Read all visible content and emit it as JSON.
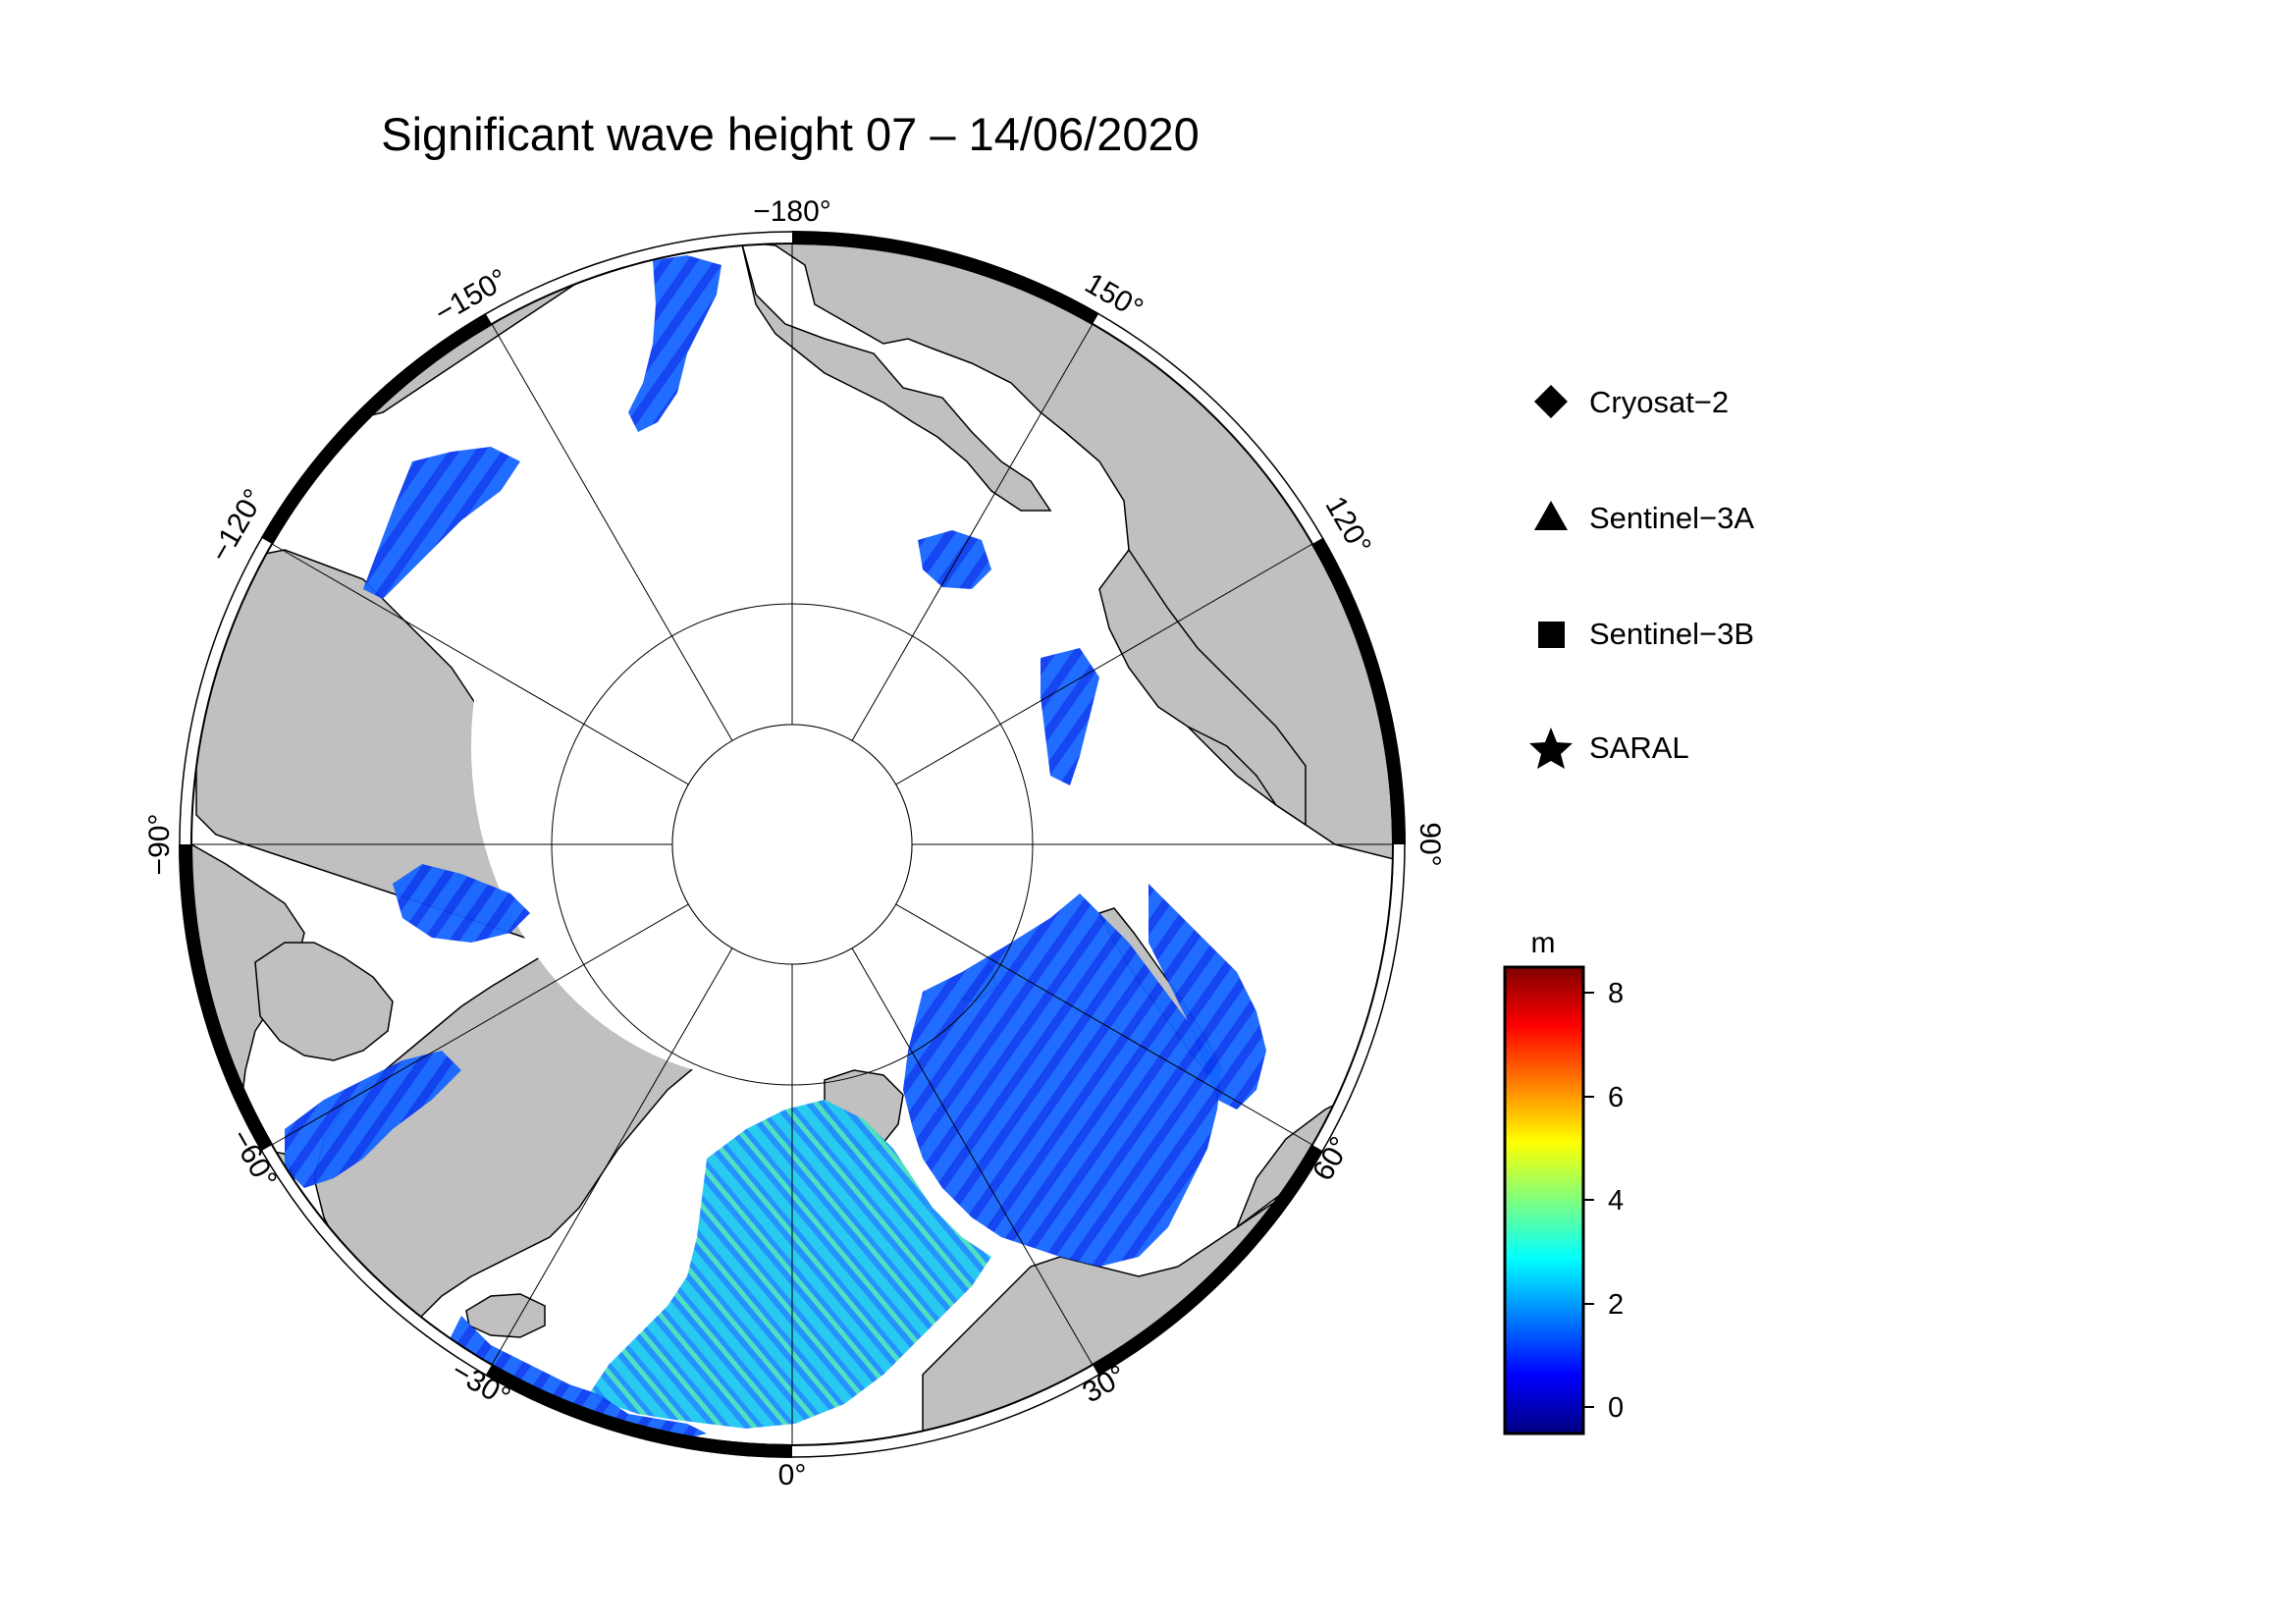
{
  "title": "Significant wave height 07 – 14/06/2020",
  "longitude_labels": {
    "n180": "−180°",
    "p150": "150°",
    "p120": "120°",
    "p90": "90°",
    "p60": "60°",
    "p30": "30°",
    "zero": "0°",
    "n30": "−30°",
    "n60": "−60°",
    "n90": "−90°",
    "n120": "−120°",
    "n150": "−150°"
  },
  "legend": {
    "items": [
      {
        "label": "Cryosat−2",
        "marker": "diamond"
      },
      {
        "label": "Sentinel−3A",
        "marker": "triangle"
      },
      {
        "label": "Sentinel−3B",
        "marker": "square"
      },
      {
        "label": "SARAL",
        "marker": "star"
      }
    ]
  },
  "colorbar": {
    "unit": "m",
    "min": -0.5,
    "max": 8.5,
    "ticks": [
      "0",
      "2",
      "4",
      "6",
      "8"
    ],
    "colormap": [
      "#00007f",
      "#0000ff",
      "#007fff",
      "#00ffff",
      "#7fff7f",
      "#ffff00",
      "#ff7f00",
      "#ff0000",
      "#7f0000"
    ]
  },
  "colors": {
    "land": "#c0c0c0",
    "ocean": "#ffffff",
    "frame": "#000000"
  }
}
